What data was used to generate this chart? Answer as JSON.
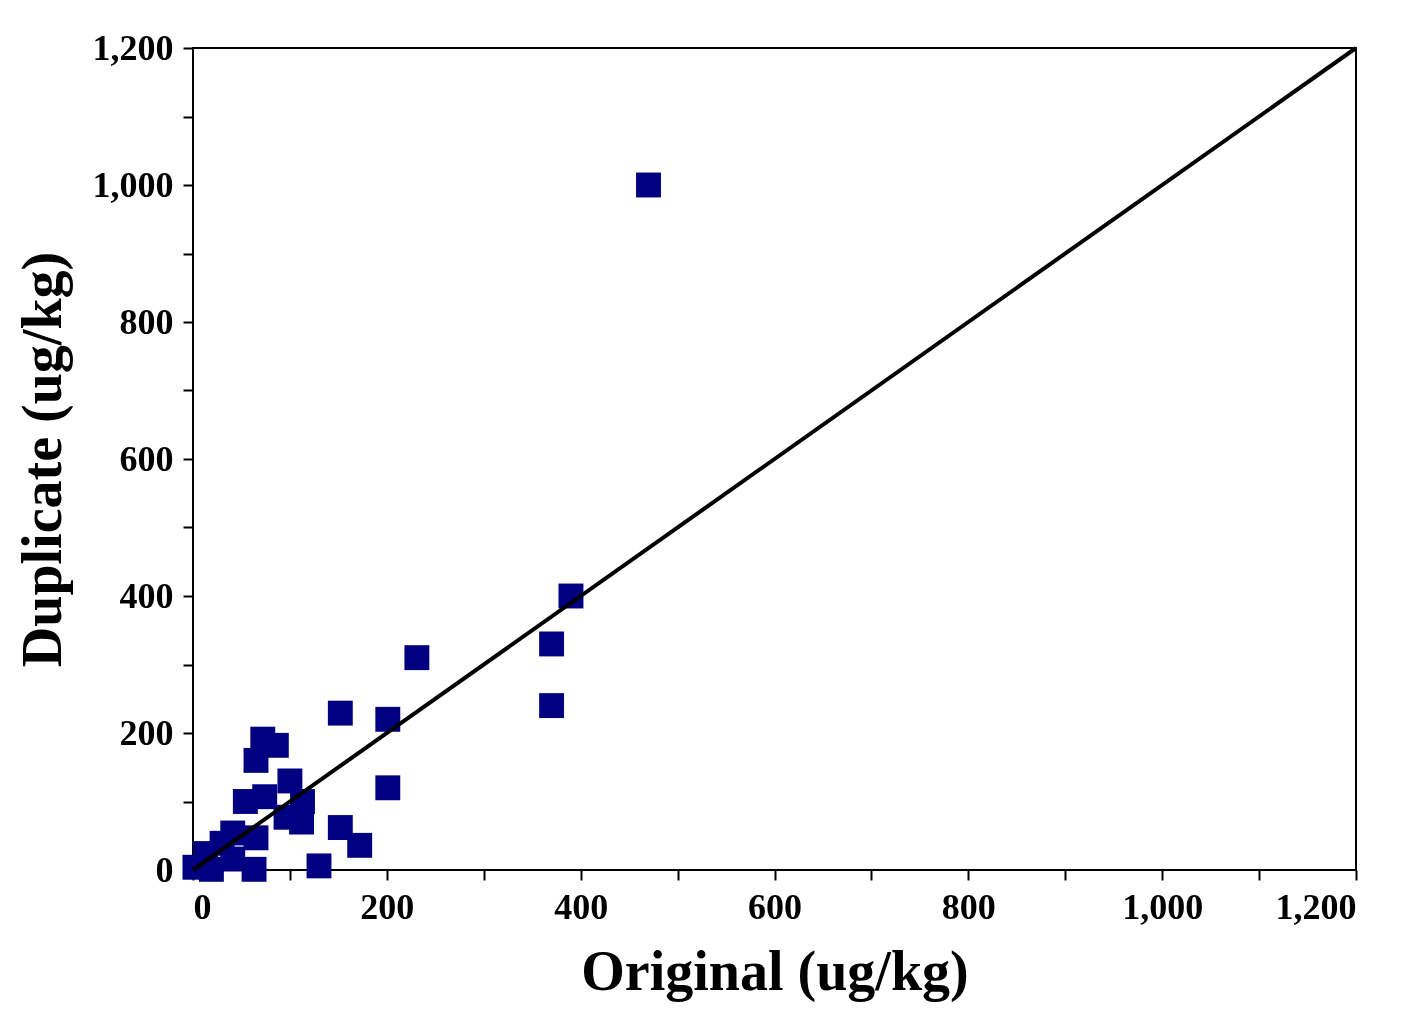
{
  "chart_data": {
    "type": "scatter",
    "xlabel": "Original (ug/kg)",
    "ylabel": "Duplicate (ug/kg)",
    "xlim": [
      0,
      1200
    ],
    "ylim": [
      0,
      1200
    ],
    "xticks": [
      0,
      {
        "value": 100,
        "label": null
      },
      200,
      {
        "value": 300,
        "label": null
      },
      400,
      {
        "value": 500,
        "label": null
      },
      600,
      {
        "value": 700,
        "label": null
      },
      800,
      {
        "value": 900,
        "label": null
      },
      {
        "value": 1000,
        "label": "1,000"
      },
      {
        "value": 1100,
        "label": null
      },
      {
        "value": 1200,
        "label": "1,200"
      }
    ],
    "yticks": [
      0,
      {
        "value": 100,
        "label": null
      },
      200,
      {
        "value": 300,
        "label": null
      },
      400,
      {
        "value": 500,
        "label": null
      },
      600,
      {
        "value": 700,
        "label": null
      },
      800,
      {
        "value": 900,
        "label": null
      },
      {
        "value": 1000,
        "label": "1,000"
      },
      {
        "value": 1100,
        "label": null
      },
      {
        "value": 1200,
        "label": "1,200"
      }
    ],
    "grid": false,
    "series": [
      {
        "type": "scatter",
        "marker": "square",
        "color": "#000080",
        "x": [
          470,
          390,
          370,
          370,
          231,
          152,
          201,
          201,
          152,
          172,
          130,
          72,
          86,
          65,
          100,
          113,
          112,
          54,
          65,
          41,
          30,
          13,
          2,
          63,
          19,
          41,
          96,
          74
        ],
        "values": [
          1000,
          400,
          330,
          240,
          310,
          229,
          220,
          120,
          62,
          36,
          6,
          191,
          182,
          160,
          130,
          100,
          70,
          100,
          47,
          54,
          39,
          24,
          4,
          1,
          1,
          16,
          77,
          107
        ]
      },
      {
        "type": "line",
        "line_style": "solid",
        "color": "#000000",
        "x": [
          0,
          1200
        ],
        "values": [
          0,
          1200
        ]
      }
    ]
  }
}
